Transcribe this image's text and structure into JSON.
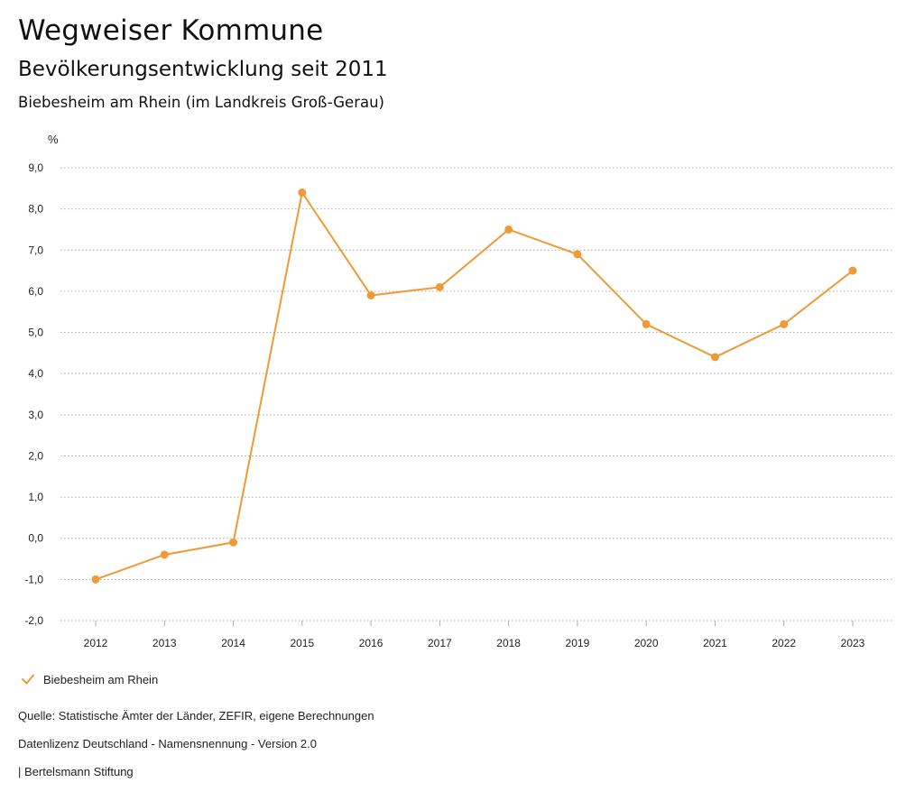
{
  "header": {
    "title": "Wegweiser Kommune",
    "subtitle": "Bevölkerungsentwicklung seit 2011",
    "region": "Biebesheim am Rhein (im Landkreis Groß-Gerau)"
  },
  "colors": {
    "series": "#EE9A37",
    "grid": "#aaaaaa",
    "text": "#222222"
  },
  "chart_data": {
    "type": "line",
    "ylabel": "%",
    "xlabel": "",
    "ylim": [
      -2,
      9
    ],
    "yticks": [
      9,
      8,
      7,
      6,
      5,
      4,
      3,
      2,
      1,
      0,
      -1,
      -2
    ],
    "ytick_labels": [
      "9,0",
      "8,0",
      "7,0",
      "6,0",
      "5,0",
      "4,0",
      "3,0",
      "2,0",
      "1,0",
      "0,0",
      "-1,0",
      "-2,0"
    ],
    "grid": true,
    "legend_position": "bottom-left",
    "x": [
      "2012",
      "2013",
      "2014",
      "2015",
      "2016",
      "2017",
      "2018",
      "2019",
      "2020",
      "2021",
      "2022",
      "2023"
    ],
    "series": [
      {
        "name": "Biebesheim am Rhein",
        "values": [
          -1.0,
          -0.4,
          -0.1,
          8.4,
          5.9,
          6.1,
          7.5,
          6.9,
          5.2,
          4.4,
          5.2,
          6.5
        ]
      }
    ]
  },
  "legend": {
    "label": "Biebesheim am Rhein",
    "icon": "checkmark-icon"
  },
  "footer": {
    "source": "Quelle: Statistische Ämter der Länder, ZEFIR, eigene Berechnungen",
    "license": "Datenlizenz Deutschland - Namensnennung - Version 2.0",
    "publisher": "| Bertelsmann Stiftung"
  }
}
